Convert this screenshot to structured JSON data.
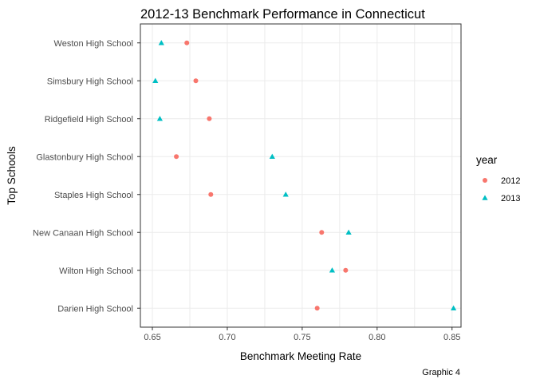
{
  "chart_data": {
    "type": "scatter",
    "title": "2012-13 Benchmark Performance in Connecticut",
    "xlabel": "Benchmark Meeting Rate",
    "ylabel": "Top Schools",
    "caption": "Graphic 4",
    "xlim": [
      0.642,
      0.856
    ],
    "x_ticks": [
      0.65,
      0.7,
      0.75,
      0.8,
      0.85
    ],
    "x_tick_labels": [
      "0.65",
      "0.70",
      "0.75",
      "0.80",
      "0.85"
    ],
    "grid": true,
    "legend": {
      "title": "year",
      "position": "right",
      "entries": [
        "2012",
        "2013"
      ]
    },
    "categories": [
      "Darien High School",
      "Wilton High School",
      "New Canaan High School",
      "Staples High School",
      "Glastonbury High School",
      "Ridgefield High School",
      "Simsbury High School",
      "Weston High School"
    ],
    "series": [
      {
        "name": "2012",
        "color": "#f8766d",
        "shape": "circle",
        "values": [
          0.76,
          0.779,
          0.763,
          0.689,
          0.666,
          0.688,
          0.679,
          0.673
        ]
      },
      {
        "name": "2013",
        "color": "#00bfc4",
        "shape": "triangle",
        "values": [
          0.851,
          0.77,
          0.781,
          0.739,
          0.73,
          0.655,
          0.652,
          0.656
        ]
      }
    ]
  }
}
